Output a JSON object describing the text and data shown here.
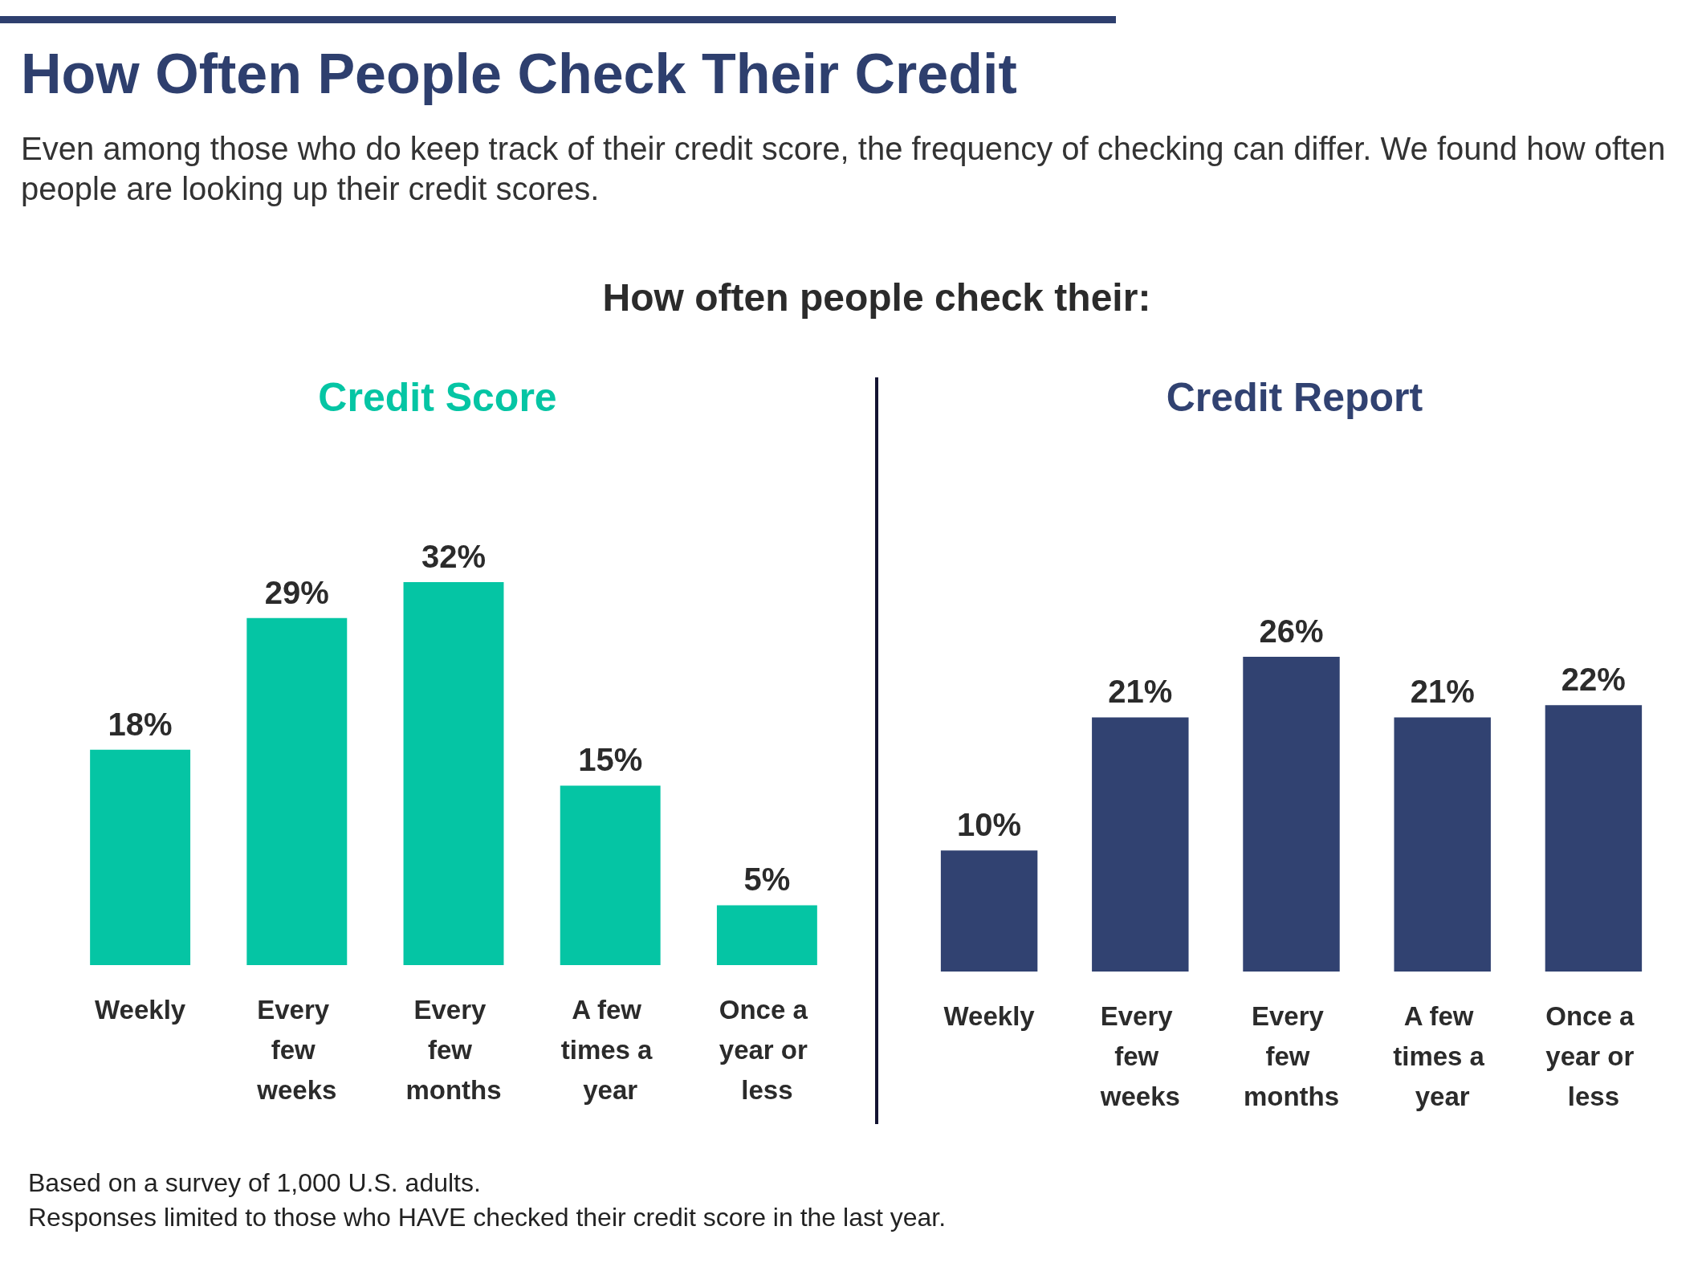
{
  "chart_data": [
    {
      "type": "other",
      "title": "How Often People Check Their Credit",
      "subtitle": "Even among those who do keep track of their credit score, the frequency of checking can differ. We found how often people are looking up their credit scores.",
      "annotations": [
        "How often people check their:",
        "Based on a survey of 1,000 U.S. adults.",
        "Responses limited to those who HAVE checked their credit score in the last year."
      ]
    },
    {
      "type": "bar",
      "title": "Credit Score",
      "categories": [
        "Weekly",
        "Every few weeks",
        "Every few months",
        "A few times a year",
        "Once a year or less"
      ],
      "values": [
        18,
        29,
        32,
        15,
        5
      ],
      "value_labels": [
        "18%",
        "29%",
        "32%",
        "15%",
        "5%"
      ],
      "color": "#05c5a4"
    },
    {
      "type": "bar",
      "title": "Credit Report",
      "categories": [
        "Weekly",
        "Every few weeks",
        "Every few months",
        "A few times a year",
        "Once a year or less"
      ],
      "values": [
        10,
        21,
        26,
        21,
        22
      ],
      "value_labels": [
        "10%",
        "21%",
        "26%",
        "21%",
        "22%"
      ],
      "color": "#314271"
    }
  ]
}
